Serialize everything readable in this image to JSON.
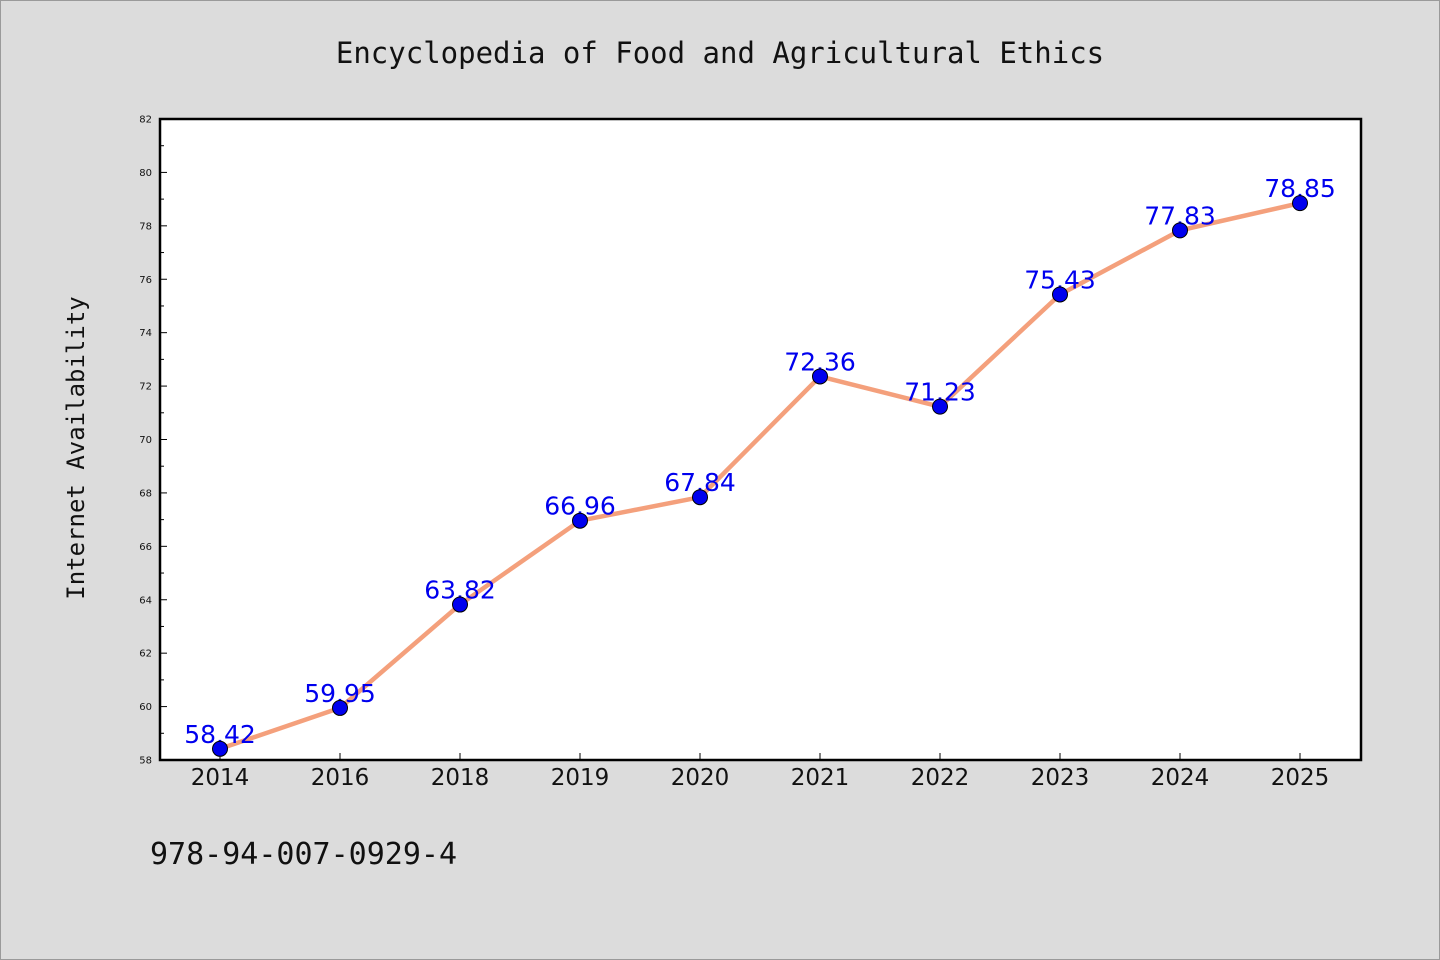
{
  "chart_data": {
    "type": "line",
    "title": "Encyclopedia of Food and Agricultural Ethics",
    "xlabel": "",
    "ylabel": "Internet Availability",
    "categories": [
      "2014",
      "2016",
      "2018",
      "2019",
      "2020",
      "2021",
      "2022",
      "2023",
      "2024",
      "2025"
    ],
    "series": [
      {
        "values": [
          58.42,
          59.95,
          63.82,
          66.96,
          67.84,
          72.36,
          71.23,
          75.43,
          77.83,
          78.85
        ],
        "data_labels": [
          "58.42",
          "59.95",
          "63.82",
          "66.96",
          "67.84",
          "72.36",
          "71.23",
          "75.43",
          "77.83",
          "78.85"
        ],
        "line_color": "#f4a07c",
        "marker_color": "#0000ee"
      }
    ],
    "ylim": [
      58,
      82
    ],
    "yticks": [
      "58",
      "60",
      "62",
      "64",
      "66",
      "68",
      "70",
      "72",
      "74",
      "76",
      "78",
      "80",
      "82"
    ],
    "grid": false,
    "legend": "none"
  },
  "footer": {
    "isbn": "978-94-007-0929-4"
  },
  "colors": {
    "background": "#dcdcdc",
    "plot_background": "#ffffff",
    "line": "#f4a07c",
    "marker": "#0000ee",
    "label": "#0000ee"
  }
}
